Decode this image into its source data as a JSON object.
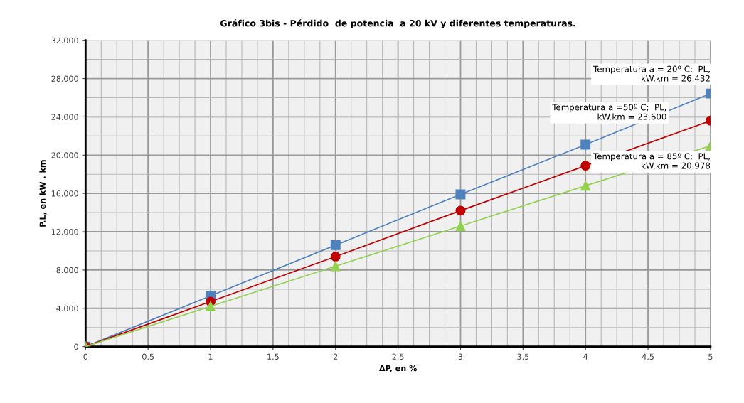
{
  "chart_data": {
    "type": "line",
    "title": "Gráfico 3bis - Pérdido  de potencia  a 20 kV y diferentes temperaturas.",
    "xlabel": "ΔP, en %",
    "ylabel": "P.L, en kW . km",
    "x": [
      0,
      1,
      2,
      3,
      4,
      5
    ],
    "series": [
      {
        "color": "#4f81bd",
        "marker": "square",
        "values": [
          0,
          5300,
          10600,
          15900,
          21100,
          26432
        ]
      },
      {
        "color": "#c00000",
        "marker": "circle",
        "values": [
          0,
          4700,
          9400,
          14200,
          18900,
          23600
        ]
      },
      {
        "color": "#92d050",
        "marker": "triangle",
        "values": [
          0,
          4200,
          8400,
          12600,
          16800,
          20978
        ]
      }
    ],
    "annotations": [
      "Temperatura a = 20º C;  PL,\nkW.km = 26.432",
      "Temperatura a =50º C;  PL,\nkW.km = 23.600",
      "Temperatura a = 85º C;  PL,\nkW.km = 20.978"
    ],
    "xlim": [
      0,
      5
    ],
    "ylim": [
      0,
      32000
    ],
    "xticks": [
      0,
      {
        "value": 0.5,
        "label": "0,5"
      },
      1,
      {
        "value": 1.5,
        "label": "1,5"
      },
      2,
      {
        "value": 2.5,
        "label": "2,5"
      },
      3,
      {
        "value": 3.5,
        "label": "3,5"
      },
      4,
      {
        "value": 4.5,
        "label": "4,5"
      },
      5
    ],
    "yticks": [
      0,
      {
        "value": 4000,
        "label": "4.000"
      },
      {
        "value": 8000,
        "label": "8.000"
      },
      {
        "value": 12000,
        "label": "12.000"
      },
      {
        "value": 16000,
        "label": "16.000"
      },
      {
        "value": 20000,
        "label": "20.000"
      },
      {
        "value": 24000,
        "label": "24.000"
      },
      {
        "value": 28000,
        "label": "28.000"
      },
      {
        "value": 32000,
        "label": "32.000"
      }
    ],
    "grid": true,
    "legend": false
  }
}
